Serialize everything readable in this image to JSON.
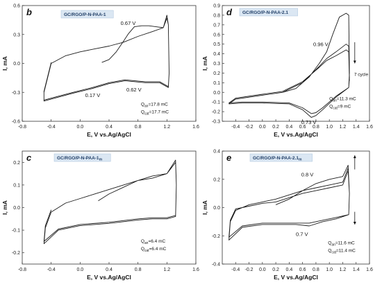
{
  "chart_data": [
    {
      "id": "b",
      "type": "line",
      "panel_letter": "b",
      "title": "GC/RGO/P-N-PAA-1",
      "title_sub": "",
      "xlabel": "E, V vs.Ag/AgCl",
      "ylabel": "I, mA",
      "xlim": [
        -0.8,
        1.6
      ],
      "ylim": [
        -0.6,
        0.6
      ],
      "xticks": [
        "-0.8",
        "-0.4",
        "0.0",
        "0.4",
        "0.8",
        "1.2",
        "1.6"
      ],
      "yticks": [
        "-0.6",
        "-0.3",
        "0.0",
        "0.3",
        "0.6"
      ],
      "xtick_values": [
        -0.8,
        -0.4,
        0.0,
        0.4,
        0.8,
        1.2,
        1.6
      ],
      "ytick_values": [
        -0.6,
        -0.3,
        0.0,
        0.3,
        0.6
      ],
      "grid": false,
      "series": [
        {
          "values": [
            [
              0.3,
              0.01
            ],
            [
              0.4,
              0.04
            ],
            [
              0.5,
              0.12
            ],
            [
              0.6,
              0.23
            ],
            [
              0.67,
              0.31
            ],
            [
              0.75,
              0.38
            ],
            [
              0.85,
              0.39
            ],
            [
              0.95,
              0.39
            ],
            [
              1.05,
              0.38
            ],
            [
              1.15,
              0.37
            ],
            [
              1.2,
              0.5
            ],
            [
              1.22,
              0.4
            ],
            [
              1.23,
              -0.1
            ],
            [
              1.22,
              -0.25
            ],
            [
              1.1,
              -0.2
            ],
            [
              0.9,
              -0.2
            ],
            [
              0.62,
              -0.18
            ],
            [
              0.4,
              -0.21
            ],
            [
              0.17,
              -0.26
            ],
            [
              -0.1,
              -0.31
            ],
            [
              -0.3,
              -0.35
            ],
            [
              -0.5,
              -0.39
            ],
            [
              -0.5,
              -0.3
            ],
            [
              -0.4,
              0.0
            ],
            [
              -0.2,
              0.08
            ],
            [
              0.0,
              0.12
            ],
            [
              0.2,
              0.15
            ],
            [
              0.4,
              0.18
            ],
            [
              0.6,
              0.22
            ],
            [
              0.8,
              0.28
            ],
            [
              1.0,
              0.33
            ],
            [
              1.15,
              0.37
            ],
            [
              1.2,
              0.47
            ],
            [
              1.22,
              0.4
            ],
            [
              1.23,
              -0.1
            ],
            [
              1.22,
              -0.24
            ],
            [
              1.1,
              -0.19
            ],
            [
              0.9,
              -0.19
            ],
            [
              0.62,
              -0.17
            ],
            [
              0.4,
              -0.2
            ],
            [
              0.17,
              -0.25
            ],
            [
              -0.1,
              -0.3
            ],
            [
              -0.3,
              -0.34
            ],
            [
              -0.5,
              -0.38
            ],
            [
              -0.5,
              -0.29
            ],
            [
              -0.4,
              0.01
            ]
          ]
        }
      ],
      "annotations": [
        {
          "text": "0.67 V",
          "x": 0.56,
          "y": 0.4
        },
        {
          "text": "0.17 V",
          "x": 0.07,
          "y": -0.35
        },
        {
          "text": "0.62 V",
          "x": 0.64,
          "y": -0.29
        }
      ],
      "charge": {
        "an_sym": "Q",
        "an_sub": "an",
        "an_value": "=17.8 mC",
        "cat_sym": "Q",
        "cat_sub": "cat",
        "cat_value": "=17.7 mC"
      },
      "charge_at": [
        0.84,
        -0.44
      ]
    },
    {
      "id": "d",
      "type": "line",
      "panel_letter": "d",
      "title": "GC/RGO/P-N-PAA-2.1",
      "title_sub": "",
      "xlabel": "E, V vs.Ag/AgCl",
      "ylabel": "I, mA",
      "xlim": [
        -0.6,
        1.6
      ],
      "ylim": [
        -0.3,
        0.9
      ],
      "xticks": [
        "-0.4",
        "-0.2",
        "0.0",
        "0.2",
        "0.4",
        "0.6",
        "0.8",
        "1.0",
        "1.2",
        "1.4",
        "1.6"
      ],
      "yticks": [
        "-0.3",
        "-0.2",
        "-0.1",
        "0.0",
        "0.1",
        "0.2",
        "0.3",
        "0.4",
        "0.5",
        "0.6",
        "0.7",
        "0.8",
        "0.9"
      ],
      "xtick_values": [
        -0.4,
        -0.2,
        0.0,
        0.2,
        0.4,
        0.6,
        0.8,
        1.0,
        1.2,
        1.4,
        1.6
      ],
      "ytick_values": [
        -0.3,
        -0.2,
        -0.1,
        0.0,
        0.1,
        0.2,
        0.3,
        0.4,
        0.5,
        0.6,
        0.7,
        0.8,
        0.9
      ],
      "grid": false,
      "series": [
        {
          "values": [
            [
              0.3,
              0.0
            ],
            [
              0.5,
              0.04
            ],
            [
              0.7,
              0.16
            ],
            [
              0.85,
              0.3
            ],
            [
              0.96,
              0.42
            ],
            [
              1.05,
              0.6
            ],
            [
              1.15,
              0.78
            ],
            [
              1.25,
              0.82
            ],
            [
              1.29,
              0.8
            ],
            [
              1.3,
              0.2
            ],
            [
              1.29,
              0.05
            ],
            [
              1.1,
              -0.05
            ],
            [
              0.9,
              -0.18
            ],
            [
              0.8,
              -0.24
            ],
            [
              0.73,
              -0.26
            ],
            [
              0.6,
              -0.18
            ],
            [
              0.4,
              -0.12
            ],
            [
              0.0,
              -0.11
            ],
            [
              -0.3,
              -0.11
            ],
            [
              -0.5,
              -0.12
            ],
            [
              -0.4,
              -0.07
            ],
            [
              0.0,
              -0.03
            ],
            [
              0.3,
              0.0
            ],
            [
              0.6,
              0.1
            ],
            [
              0.85,
              0.27
            ],
            [
              0.96,
              0.35
            ],
            [
              1.1,
              0.42
            ],
            [
              1.25,
              0.5
            ],
            [
              1.29,
              0.48
            ],
            [
              1.3,
              0.15
            ],
            [
              1.29,
              0.05
            ],
            [
              1.1,
              -0.04
            ],
            [
              0.9,
              -0.16
            ],
            [
              0.8,
              -0.21
            ],
            [
              0.73,
              -0.22
            ],
            [
              0.6,
              -0.16
            ],
            [
              0.4,
              -0.11
            ],
            [
              0.0,
              -0.1
            ],
            [
              -0.3,
              -0.1
            ],
            [
              -0.5,
              -0.11
            ],
            [
              -0.4,
              -0.06
            ],
            [
              0.0,
              -0.02
            ],
            [
              0.3,
              0.01
            ],
            [
              0.6,
              0.11
            ],
            [
              0.85,
              0.26
            ],
            [
              0.96,
              0.33
            ],
            [
              1.1,
              0.38
            ],
            [
              1.25,
              0.44
            ],
            [
              1.29,
              0.42
            ],
            [
              1.3,
              0.12
            ]
          ]
        }
      ],
      "annotations": [
        {
          "text": "0.96 V",
          "x": 0.76,
          "y": 0.48
        },
        {
          "text": "0.73 V",
          "x": 0.58,
          "y": -0.33
        }
      ],
      "arrow": {
        "x": 1.38,
        "y1": 0.52,
        "y2": 0.3
      },
      "arrow_label": {
        "text": "7 cycle",
        "x": 1.37,
        "y": 0.17
      },
      "charge": {
        "an_sym": "Q",
        "an_sub": "an",
        "an_value": "=11.3 mC",
        "cat_sym": "Q",
        "cat_sub": "cat",
        "cat_value": "=9 mC"
      },
      "charge_at": [
        1.0,
        -0.08
      ]
    },
    {
      "id": "c",
      "type": "line",
      "panel_letter": "c",
      "title": "GC/RGO/P-N-PAA-1",
      "title_sub": "m",
      "xlabel": "E, V vs.Ag/AgCl",
      "ylabel": "I, mA",
      "xlim": [
        -0.8,
        1.6
      ],
      "ylim": [
        -0.25,
        0.25
      ],
      "xticks": [
        "-0.8",
        "-0.4",
        "0.0",
        "0.4",
        "0.8",
        "1.2",
        "1.6"
      ],
      "yticks": [
        "-0.2",
        "-0.1",
        "0.0",
        "0.1",
        "0.2"
      ],
      "xtick_values": [
        -0.8,
        -0.4,
        0.0,
        0.4,
        0.8,
        1.2,
        1.6
      ],
      "ytick_values": [
        -0.2,
        -0.1,
        0.0,
        0.1,
        0.2
      ],
      "grid": false,
      "series": [
        {
          "values": [
            [
              0.25,
              0.03
            ],
            [
              0.4,
              0.06
            ],
            [
              0.6,
              0.09
            ],
            [
              0.8,
              0.12
            ],
            [
              1.0,
              0.14
            ],
            [
              1.2,
              0.15
            ],
            [
              1.32,
              0.21
            ],
            [
              1.33,
              0.1
            ],
            [
              1.32,
              -0.04
            ],
            [
              1.2,
              -0.05
            ],
            [
              1.0,
              -0.05
            ],
            [
              0.8,
              -0.055
            ],
            [
              0.4,
              -0.07
            ],
            [
              0.0,
              -0.08
            ],
            [
              -0.3,
              -0.1
            ],
            [
              -0.5,
              -0.16
            ],
            [
              -0.48,
              -0.09
            ],
            [
              -0.4,
              -0.02
            ],
            [
              -0.2,
              0.02
            ],
            [
              0.0,
              0.04
            ],
            [
              0.2,
              0.06
            ],
            [
              0.4,
              0.08
            ],
            [
              0.6,
              0.1
            ],
            [
              0.8,
              0.12
            ],
            [
              1.0,
              0.13
            ],
            [
              1.2,
              0.15
            ],
            [
              1.32,
              0.2
            ],
            [
              1.33,
              0.1
            ],
            [
              1.32,
              -0.035
            ],
            [
              1.2,
              -0.045
            ],
            [
              1.0,
              -0.045
            ],
            [
              0.8,
              -0.05
            ],
            [
              0.4,
              -0.065
            ],
            [
              0.0,
              -0.075
            ],
            [
              -0.3,
              -0.095
            ],
            [
              -0.5,
              -0.15
            ],
            [
              -0.48,
              -0.08
            ],
            [
              -0.4,
              -0.01
            ]
          ]
        }
      ],
      "annotations": [],
      "charge": {
        "an_sym": "Q",
        "an_sub": "an",
        "an_value": "=6.4 mC",
        "cat_sym": "Q",
        "cat_sub": "cat",
        "cat_value": "=6.4 mC"
      },
      "charge_at": [
        0.84,
        -0.155
      ]
    },
    {
      "id": "e",
      "type": "line",
      "panel_letter": "e",
      "title": "GC/RGO/P-N-PAA-2.1",
      "title_sub": "m",
      "xlabel": "E, V vs.Ag/AgCl",
      "ylabel": "I, mA",
      "xlim": [
        -0.6,
        1.6
      ],
      "ylim": [
        -0.4,
        0.4
      ],
      "xticks": [
        "-0.4",
        "-0.2",
        "0.0",
        "0.2",
        "0.4",
        "0.6",
        "0.8",
        "1.0",
        "1.2",
        "1.4",
        "1.6"
      ],
      "yticks": [
        "-0.4",
        "-0.2",
        "0.0",
        "0.2",
        "0.4"
      ],
      "xtick_values": [
        -0.4,
        -0.2,
        0.0,
        0.2,
        0.4,
        0.6,
        0.8,
        1.0,
        1.2,
        1.4,
        1.6
      ],
      "ytick_values": [
        -0.4,
        -0.2,
        0.0,
        0.2,
        0.4
      ],
      "grid": false,
      "series": [
        {
          "values": [
            [
              0.2,
              0.02
            ],
            [
              0.4,
              0.06
            ],
            [
              0.6,
              0.12
            ],
            [
              0.8,
              0.17
            ],
            [
              1.0,
              0.2
            ],
            [
              1.2,
              0.22
            ],
            [
              1.28,
              0.3
            ],
            [
              1.3,
              0.1
            ],
            [
              1.29,
              -0.05
            ],
            [
              1.1,
              -0.08
            ],
            [
              0.9,
              -0.1
            ],
            [
              0.7,
              -0.13
            ],
            [
              0.5,
              -0.12
            ],
            [
              0.0,
              -0.12
            ],
            [
              -0.3,
              -0.14
            ],
            [
              -0.5,
              -0.23
            ],
            [
              -0.48,
              -0.1
            ],
            [
              -0.4,
              -0.02
            ],
            [
              -0.2,
              0.02
            ],
            [
              0.0,
              0.04
            ],
            [
              0.2,
              0.06
            ],
            [
              0.4,
              0.09
            ],
            [
              0.6,
              0.12
            ],
            [
              0.8,
              0.14
            ],
            [
              1.0,
              0.16
            ],
            [
              1.2,
              0.18
            ],
            [
              1.28,
              0.28
            ],
            [
              1.3,
              0.1
            ],
            [
              1.29,
              -0.05
            ],
            [
              1.1,
              -0.07
            ],
            [
              0.9,
              -0.09
            ],
            [
              0.7,
              -0.11
            ],
            [
              0.5,
              -0.11
            ],
            [
              0.0,
              -0.11
            ],
            [
              -0.3,
              -0.13
            ],
            [
              -0.5,
              -0.21
            ],
            [
              -0.48,
              -0.09
            ],
            [
              -0.4,
              -0.01
            ],
            [
              -0.2,
              0.01
            ],
            [
              0.0,
              0.03
            ],
            [
              0.2,
              0.04
            ],
            [
              0.4,
              0.07
            ],
            [
              0.6,
              0.1
            ],
            [
              0.8,
              0.12
            ],
            [
              1.0,
              0.14
            ],
            [
              1.2,
              0.16
            ],
            [
              1.28,
              0.26
            ],
            [
              1.3,
              0.1
            ]
          ]
        }
      ],
      "annotations": [
        {
          "text": "0.8 V",
          "x": 0.58,
          "y": 0.22
        },
        {
          "text": "0.7 V",
          "x": 0.5,
          "y": -0.2
        }
      ],
      "arrows": [
        {
          "x": 1.38,
          "y1": 0.27,
          "y2": 0.37
        },
        {
          "x": 1.38,
          "y1": -0.03,
          "y2": -0.12
        }
      ],
      "charge": {
        "an_sym": "Q",
        "an_sub": "an",
        "an_value": "=11.6 mC",
        "cat_sym": "Q",
        "cat_sub": "cat",
        "cat_value": "=11.4 mC"
      },
      "charge_at": [
        0.98,
        -0.26
      ]
    }
  ],
  "colors": {
    "curve": "#1a1a1a",
    "axis": "#333333",
    "title_box_fill": "#dbe7f3",
    "title_box_stroke": "#aac3dc",
    "title_text": "#1f3d66",
    "panel_letter": "#111111"
  }
}
